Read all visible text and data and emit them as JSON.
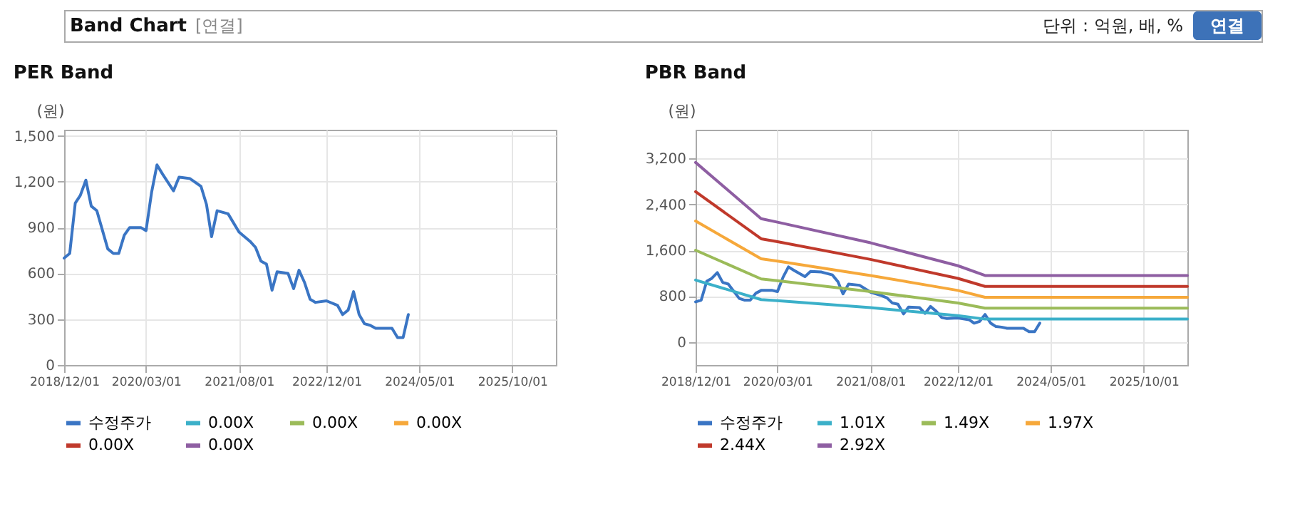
{
  "chart_data": [
    {
      "type": "line",
      "title": "PER Band",
      "ylabel": "(원)",
      "annotations": [
        "Band Chart",
        "[연결]",
        "단위 : 억원, 배, %",
        "연결"
      ],
      "xlim": [
        "2018-12-01",
        "2026-06-01"
      ],
      "ylim": [
        0,
        1540
      ],
      "xticks": [
        {
          "value": "2018-12-01",
          "label": "2018/12/01"
        },
        {
          "value": "2020-03-01",
          "label": "2020/03/01"
        },
        {
          "value": "2021-08-01",
          "label": "2021/08/01"
        },
        {
          "value": "2022-12-01",
          "label": "2022/12/01"
        },
        {
          "value": "2024-05-01",
          "label": "2024/05/01"
        },
        {
          "value": "2025-10-01",
          "label": "2025/10/01"
        }
      ],
      "yticks": [
        0,
        300,
        600,
        900,
        {
          "value": 1200,
          "label": "1,200"
        },
        {
          "value": 1500,
          "label": "1,500"
        }
      ],
      "grid": true,
      "legend": "bottom",
      "series": [
        {
          "name": "수정주가",
          "color": "#3a75c4",
          "x": [
            "2018-12-01",
            "2019-01-01",
            "2019-02-01",
            "2019-03-01",
            "2019-04-01",
            "2019-05-01",
            "2019-06-01",
            "2019-08-01",
            "2019-09-01",
            "2019-10-01",
            "2019-11-01",
            "2019-12-01",
            "2020-02-01",
            "2020-03-01",
            "2020-04-01",
            "2020-05-01",
            "2020-06-01",
            "2020-08-01",
            "2020-09-01",
            "2020-11-01",
            "2021-01-01",
            "2021-02-01",
            "2021-03-01",
            "2021-04-01",
            "2021-06-01",
            "2021-08-01",
            "2021-10-01",
            "2021-11-01",
            "2021-12-01",
            "2022-01-01",
            "2022-02-01",
            "2022-03-01",
            "2022-05-01",
            "2022-06-01",
            "2022-07-01",
            "2022-08-01",
            "2022-09-01",
            "2022-10-01",
            "2022-12-01",
            "2023-02-01",
            "2023-03-01",
            "2023-04-01",
            "2023-05-01",
            "2023-06-01",
            "2023-07-01",
            "2023-08-01",
            "2023-09-01",
            "2023-12-01",
            "2024-01-01",
            "2024-02-01",
            "2024-03-01"
          ],
          "values": [
            700,
            730,
            1060,
            1110,
            1210,
            1040,
            1010,
            760,
            730,
            730,
            850,
            900,
            900,
            880,
            1130,
            1310,
            1250,
            1140,
            1230,
            1220,
            1170,
            1050,
            840,
            1010,
            990,
            870,
            810,
            770,
            680,
            660,
            490,
            610,
            600,
            500,
            620,
            540,
            430,
            410,
            420,
            390,
            330,
            360,
            480,
            330,
            270,
            260,
            240,
            240,
            180,
            180,
            330
          ]
        },
        {
          "name": "0.00X",
          "color": "#3bb0c9"
        },
        {
          "name": "0.00X",
          "color": "#9bbb59"
        },
        {
          "name": "0.00X",
          "color": "#f6a83a"
        },
        {
          "name": "0.00X",
          "color": "#c0392b"
        },
        {
          "name": "0.00X",
          "color": "#8e5ea2"
        }
      ]
    },
    {
      "type": "line",
      "title": "PBR Band",
      "ylabel": "(원)",
      "xlim": [
        "2018-12-01",
        "2026-06-01"
      ],
      "ylim": [
        -400,
        3700
      ],
      "xticks": [
        {
          "value": "2018-12-01",
          "label": "2018/12/01"
        },
        {
          "value": "2020-03-01",
          "label": "2020/03/01"
        },
        {
          "value": "2021-08-01",
          "label": "2021/08/01"
        },
        {
          "value": "2022-12-01",
          "label": "2022/12/01"
        },
        {
          "value": "2024-05-01",
          "label": "2024/05/01"
        },
        {
          "value": "2025-10-01",
          "label": "2025/10/01"
        }
      ],
      "yticks": [
        0,
        800,
        {
          "value": 1600,
          "label": "1,600"
        },
        {
          "value": 2400,
          "label": "2,400"
        },
        {
          "value": 3200,
          "label": "3,200"
        }
      ],
      "grid": true,
      "legend": "bottom",
      "series": [
        {
          "name": "수정주가",
          "color": "#3a75c4",
          "x": [
            "2018-12-01",
            "2019-01-01",
            "2019-02-01",
            "2019-03-01",
            "2019-04-01",
            "2019-05-01",
            "2019-06-01",
            "2019-08-01",
            "2019-09-01",
            "2019-10-01",
            "2019-11-01",
            "2019-12-01",
            "2020-02-01",
            "2020-03-01",
            "2020-04-01",
            "2020-05-01",
            "2020-06-01",
            "2020-08-01",
            "2020-09-01",
            "2020-11-01",
            "2021-01-01",
            "2021-02-01",
            "2021-03-01",
            "2021-04-01",
            "2021-06-01",
            "2021-08-01",
            "2021-10-01",
            "2021-11-01",
            "2021-12-01",
            "2022-01-01",
            "2022-02-01",
            "2022-03-01",
            "2022-05-01",
            "2022-06-01",
            "2022-07-01",
            "2022-08-01",
            "2022-09-01",
            "2022-10-01",
            "2022-12-01",
            "2023-02-01",
            "2023-03-01",
            "2023-04-01",
            "2023-05-01",
            "2023-06-01",
            "2023-07-01",
            "2023-08-01",
            "2023-09-01",
            "2023-12-01",
            "2024-01-01",
            "2024-02-01",
            "2024-03-01"
          ],
          "values": [
            700,
            730,
            1060,
            1110,
            1210,
            1040,
            1010,
            760,
            730,
            730,
            850,
            900,
            900,
            880,
            1130,
            1310,
            1250,
            1140,
            1230,
            1220,
            1170,
            1050,
            840,
            1010,
            990,
            870,
            810,
            770,
            680,
            660,
            490,
            610,
            600,
            500,
            620,
            540,
            430,
            410,
            420,
            390,
            330,
            360,
            480,
            330,
            270,
            260,
            240,
            240,
            180,
            180,
            330
          ]
        },
        {
          "name": "1.01X",
          "color": "#3bb0c9",
          "x": [
            "2018-12-01",
            "2019-12-01",
            "2020-03-01",
            "2021-08-01",
            "2022-12-01",
            "2023-05-01",
            "2026-06-01"
          ],
          "values": [
            1080,
            740,
            720,
            600,
            460,
            400,
            400
          ]
        },
        {
          "name": "1.49X",
          "color": "#9bbb59",
          "x": [
            "2018-12-01",
            "2019-12-01",
            "2020-03-01",
            "2021-08-01",
            "2022-12-01",
            "2023-05-01",
            "2026-06-01"
          ],
          "values": [
            1600,
            1100,
            1070,
            880,
            680,
            590,
            590
          ]
        },
        {
          "name": "1.97X",
          "color": "#f6a83a",
          "x": [
            "2018-12-01",
            "2019-12-01",
            "2020-03-01",
            "2021-08-01",
            "2022-12-01",
            "2023-05-01",
            "2026-06-01"
          ],
          "values": [
            2110,
            1450,
            1410,
            1160,
            900,
            780,
            780
          ]
        },
        {
          "name": "2.44X",
          "color": "#c0392b",
          "x": [
            "2018-12-01",
            "2019-12-01",
            "2020-03-01",
            "2021-08-01",
            "2022-12-01",
            "2023-05-01",
            "2026-06-01"
          ],
          "values": [
            2620,
            1800,
            1750,
            1440,
            1110,
            970,
            970
          ]
        },
        {
          "name": "2.92X",
          "color": "#8e5ea2",
          "x": [
            "2018-12-01",
            "2019-12-01",
            "2020-03-01",
            "2021-08-01",
            "2022-12-01",
            "2023-05-01",
            "2026-06-01"
          ],
          "values": [
            3130,
            2150,
            2090,
            1730,
            1330,
            1160,
            1160
          ]
        }
      ]
    }
  ]
}
